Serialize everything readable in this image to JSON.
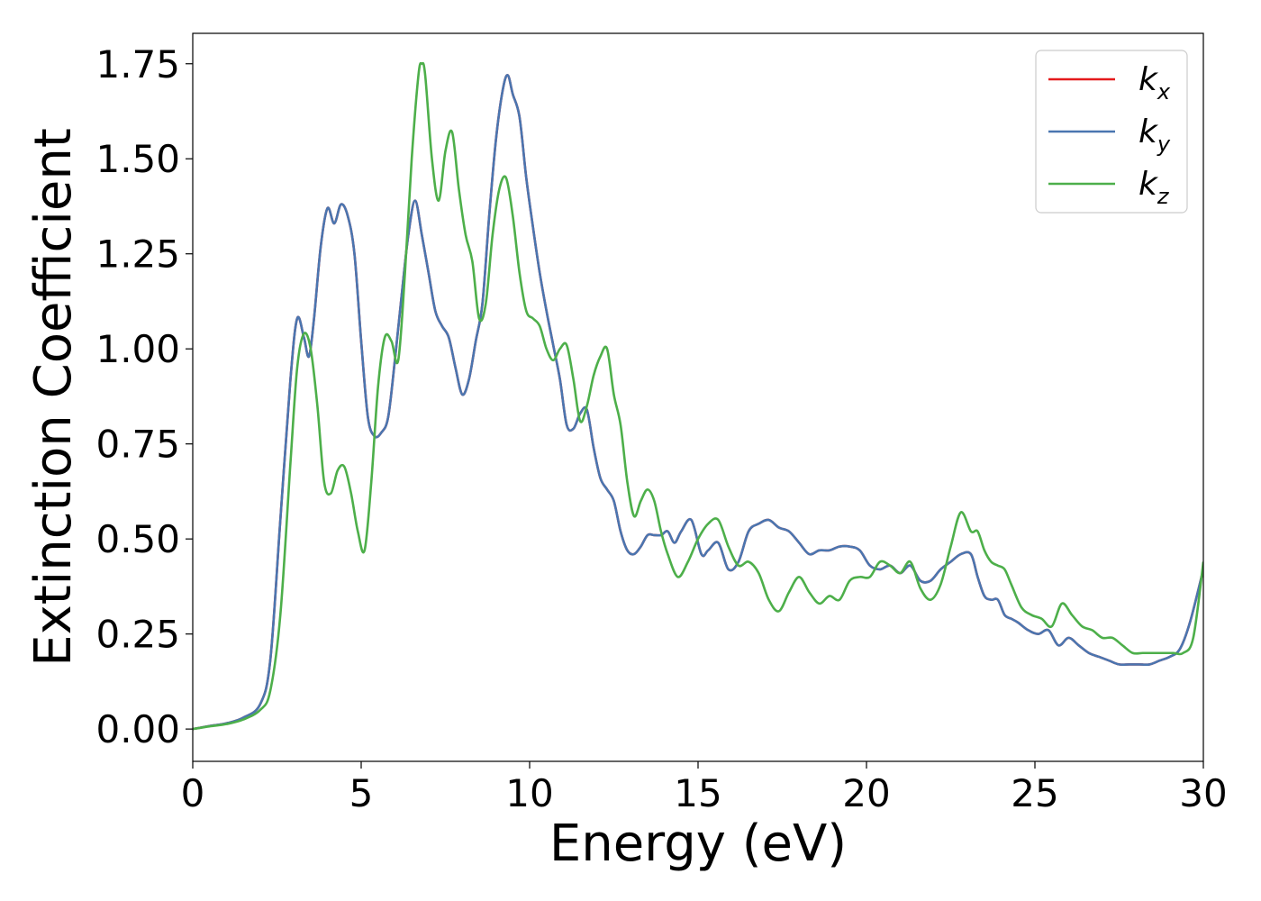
{
  "chart_data": {
    "type": "line",
    "title": "",
    "xlabel": "Energy (eV)",
    "ylabel": "Extinction Coefficient",
    "xlim": [
      0,
      30
    ],
    "ylim": [
      -0.085,
      1.83
    ],
    "xticks": [
      0,
      5,
      10,
      15,
      20,
      25,
      30
    ],
    "xtick_labels": [
      "0",
      "5",
      "10",
      "15",
      "20",
      "25",
      "30"
    ],
    "yticks": [
      0.0,
      0.25,
      0.5,
      0.75,
      1.0,
      1.25,
      1.5,
      1.75
    ],
    "ytick_labels": [
      "0.00",
      "0.25",
      "0.50",
      "0.75",
      "1.00",
      "1.25",
      "1.50",
      "1.75"
    ],
    "grid": false,
    "legend_position": "top-right",
    "series": [
      {
        "name": "k_x",
        "label_base": "k",
        "label_sub": "x",
        "color": "#e41a1c",
        "x": [
          0,
          0.5,
          1.0,
          1.5,
          2.0,
          2.3,
          2.6,
          2.9,
          3.1,
          3.3,
          3.45,
          3.6,
          3.8,
          4.0,
          4.2,
          4.4,
          4.6,
          4.8,
          5.0,
          5.2,
          5.4,
          5.6,
          5.8,
          6.0,
          6.2,
          6.4,
          6.6,
          6.8,
          7.0,
          7.2,
          7.4,
          7.6,
          7.8,
          8.0,
          8.2,
          8.4,
          8.6,
          8.8,
          9.0,
          9.2,
          9.35,
          9.5,
          9.7,
          9.9,
          10.1,
          10.3,
          10.5,
          10.7,
          10.9,
          11.1,
          11.3,
          11.5,
          11.7,
          11.9,
          12.1,
          12.3,
          12.5,
          12.7,
          12.9,
          13.1,
          13.3,
          13.5,
          13.7,
          13.9,
          14.1,
          14.3,
          14.5,
          14.8,
          15.1,
          15.3,
          15.6,
          15.9,
          16.2,
          16.5,
          16.8,
          17.1,
          17.4,
          17.7,
          18.0,
          18.3,
          18.6,
          18.9,
          19.2,
          19.5,
          19.8,
          20.1,
          20.4,
          20.7,
          21.0,
          21.3,
          21.6,
          21.9,
          22.2,
          22.5,
          22.8,
          23.1,
          23.3,
          23.5,
          23.7,
          23.9,
          24.1,
          24.3,
          24.5,
          24.8,
          25.1,
          25.4,
          25.7,
          26.0,
          26.3,
          26.6,
          26.9,
          27.2,
          27.5,
          27.8,
          28.1,
          28.4,
          28.7,
          29.0,
          29.3,
          29.6,
          30.0
        ],
        "values": [
          0.0,
          0.008,
          0.015,
          0.03,
          0.065,
          0.18,
          0.55,
          0.92,
          1.08,
          1.03,
          0.98,
          1.08,
          1.27,
          1.37,
          1.33,
          1.38,
          1.35,
          1.25,
          1.02,
          0.82,
          0.77,
          0.78,
          0.82,
          0.97,
          1.14,
          1.3,
          1.39,
          1.3,
          1.2,
          1.1,
          1.06,
          1.03,
          0.95,
          0.88,
          0.92,
          1.02,
          1.12,
          1.35,
          1.55,
          1.68,
          1.72,
          1.67,
          1.61,
          1.45,
          1.32,
          1.2,
          1.1,
          1.01,
          0.92,
          0.8,
          0.79,
          0.83,
          0.84,
          0.74,
          0.66,
          0.63,
          0.6,
          0.52,
          0.47,
          0.46,
          0.48,
          0.51,
          0.51,
          0.51,
          0.52,
          0.49,
          0.52,
          0.55,
          0.46,
          0.47,
          0.49,
          0.42,
          0.44,
          0.52,
          0.54,
          0.55,
          0.53,
          0.52,
          0.49,
          0.46,
          0.47,
          0.47,
          0.48,
          0.48,
          0.47,
          0.43,
          0.42,
          0.43,
          0.41,
          0.43,
          0.39,
          0.39,
          0.42,
          0.44,
          0.46,
          0.46,
          0.4,
          0.35,
          0.34,
          0.34,
          0.3,
          0.29,
          0.28,
          0.26,
          0.25,
          0.26,
          0.22,
          0.24,
          0.22,
          0.2,
          0.19,
          0.18,
          0.17,
          0.17,
          0.17,
          0.17,
          0.18,
          0.19,
          0.21,
          0.28,
          0.42
        ]
      },
      {
        "name": "k_y",
        "label_base": "k",
        "label_sub": "y",
        "color": "#4a76b0",
        "x": [
          0,
          0.5,
          1.0,
          1.5,
          2.0,
          2.3,
          2.6,
          2.9,
          3.1,
          3.3,
          3.45,
          3.6,
          3.8,
          4.0,
          4.2,
          4.4,
          4.6,
          4.8,
          5.0,
          5.2,
          5.4,
          5.6,
          5.8,
          6.0,
          6.2,
          6.4,
          6.6,
          6.8,
          7.0,
          7.2,
          7.4,
          7.6,
          7.8,
          8.0,
          8.2,
          8.4,
          8.6,
          8.8,
          9.0,
          9.2,
          9.35,
          9.5,
          9.7,
          9.9,
          10.1,
          10.3,
          10.5,
          10.7,
          10.9,
          11.1,
          11.3,
          11.5,
          11.7,
          11.9,
          12.1,
          12.3,
          12.5,
          12.7,
          12.9,
          13.1,
          13.3,
          13.5,
          13.7,
          13.9,
          14.1,
          14.3,
          14.5,
          14.8,
          15.1,
          15.3,
          15.6,
          15.9,
          16.2,
          16.5,
          16.8,
          17.1,
          17.4,
          17.7,
          18.0,
          18.3,
          18.6,
          18.9,
          19.2,
          19.5,
          19.8,
          20.1,
          20.4,
          20.7,
          21.0,
          21.3,
          21.6,
          21.9,
          22.2,
          22.5,
          22.8,
          23.1,
          23.3,
          23.5,
          23.7,
          23.9,
          24.1,
          24.3,
          24.5,
          24.8,
          25.1,
          25.4,
          25.7,
          26.0,
          26.3,
          26.6,
          26.9,
          27.2,
          27.5,
          27.8,
          28.1,
          28.4,
          28.7,
          29.0,
          29.3,
          29.6,
          30.0
        ],
        "values": [
          0.0,
          0.008,
          0.015,
          0.03,
          0.065,
          0.18,
          0.55,
          0.92,
          1.08,
          1.03,
          0.98,
          1.08,
          1.27,
          1.37,
          1.33,
          1.38,
          1.35,
          1.25,
          1.02,
          0.82,
          0.77,
          0.78,
          0.82,
          0.97,
          1.14,
          1.3,
          1.39,
          1.3,
          1.2,
          1.1,
          1.06,
          1.03,
          0.95,
          0.88,
          0.92,
          1.02,
          1.12,
          1.35,
          1.55,
          1.68,
          1.72,
          1.67,
          1.61,
          1.45,
          1.32,
          1.2,
          1.1,
          1.01,
          0.92,
          0.8,
          0.79,
          0.83,
          0.84,
          0.74,
          0.66,
          0.63,
          0.6,
          0.52,
          0.47,
          0.46,
          0.48,
          0.51,
          0.51,
          0.51,
          0.52,
          0.49,
          0.52,
          0.55,
          0.46,
          0.47,
          0.49,
          0.42,
          0.44,
          0.52,
          0.54,
          0.55,
          0.53,
          0.52,
          0.49,
          0.46,
          0.47,
          0.47,
          0.48,
          0.48,
          0.47,
          0.43,
          0.42,
          0.43,
          0.41,
          0.43,
          0.39,
          0.39,
          0.42,
          0.44,
          0.46,
          0.46,
          0.4,
          0.35,
          0.34,
          0.34,
          0.3,
          0.29,
          0.28,
          0.26,
          0.25,
          0.26,
          0.22,
          0.24,
          0.22,
          0.2,
          0.19,
          0.18,
          0.17,
          0.17,
          0.17,
          0.17,
          0.18,
          0.19,
          0.21,
          0.28,
          0.42
        ]
      },
      {
        "name": "k_z",
        "label_base": "k",
        "label_sub": "z",
        "color": "#4daf4a",
        "x": [
          0,
          0.5,
          1.0,
          1.5,
          2.0,
          2.3,
          2.6,
          2.9,
          3.1,
          3.3,
          3.5,
          3.7,
          3.9,
          4.1,
          4.3,
          4.5,
          4.7,
          4.9,
          5.1,
          5.3,
          5.5,
          5.7,
          5.9,
          6.1,
          6.3,
          6.5,
          6.7,
          6.8,
          6.9,
          7.1,
          7.3,
          7.5,
          7.7,
          7.9,
          8.1,
          8.3,
          8.5,
          8.7,
          8.9,
          9.1,
          9.3,
          9.5,
          9.7,
          9.9,
          10.1,
          10.3,
          10.5,
          10.7,
          10.9,
          11.1,
          11.3,
          11.5,
          11.7,
          11.9,
          12.1,
          12.3,
          12.5,
          12.7,
          12.9,
          13.1,
          13.3,
          13.5,
          13.7,
          13.9,
          14.1,
          14.4,
          14.7,
          15.0,
          15.3,
          15.6,
          15.9,
          16.2,
          16.5,
          16.8,
          17.1,
          17.4,
          17.7,
          18.0,
          18.3,
          18.6,
          18.9,
          19.2,
          19.5,
          19.8,
          20.1,
          20.4,
          20.7,
          21.0,
          21.3,
          21.6,
          21.9,
          22.2,
          22.5,
          22.8,
          23.1,
          23.3,
          23.5,
          23.7,
          23.9,
          24.1,
          24.3,
          24.6,
          24.9,
          25.2,
          25.5,
          25.8,
          26.1,
          26.4,
          26.7,
          27.0,
          27.3,
          27.6,
          27.9,
          28.2,
          28.5,
          28.8,
          29.1,
          29.4,
          29.7,
          30.0
        ],
        "values": [
          0.0,
          0.007,
          0.013,
          0.025,
          0.05,
          0.1,
          0.3,
          0.7,
          0.95,
          1.04,
          1.0,
          0.85,
          0.65,
          0.62,
          0.68,
          0.69,
          0.62,
          0.52,
          0.47,
          0.65,
          0.9,
          1.03,
          1.02,
          0.97,
          1.2,
          1.5,
          1.72,
          1.75,
          1.72,
          1.5,
          1.39,
          1.52,
          1.57,
          1.42,
          1.3,
          1.23,
          1.08,
          1.12,
          1.3,
          1.42,
          1.45,
          1.35,
          1.2,
          1.1,
          1.08,
          1.06,
          1.0,
          0.97,
          1.0,
          1.01,
          0.92,
          0.81,
          0.85,
          0.93,
          0.98,
          1.0,
          0.88,
          0.8,
          0.65,
          0.56,
          0.6,
          0.63,
          0.6,
          0.52,
          0.46,
          0.4,
          0.44,
          0.5,
          0.54,
          0.55,
          0.48,
          0.43,
          0.44,
          0.41,
          0.34,
          0.31,
          0.36,
          0.4,
          0.36,
          0.33,
          0.35,
          0.34,
          0.39,
          0.4,
          0.4,
          0.44,
          0.43,
          0.41,
          0.44,
          0.37,
          0.34,
          0.38,
          0.48,
          0.57,
          0.52,
          0.52,
          0.47,
          0.44,
          0.43,
          0.42,
          0.38,
          0.32,
          0.3,
          0.29,
          0.27,
          0.33,
          0.3,
          0.27,
          0.26,
          0.24,
          0.24,
          0.22,
          0.2,
          0.2,
          0.2,
          0.2,
          0.2,
          0.2,
          0.24,
          0.44
        ]
      }
    ]
  }
}
